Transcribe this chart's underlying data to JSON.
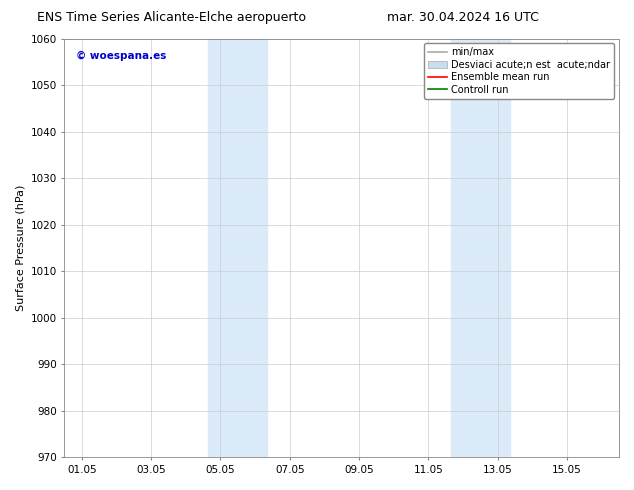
{
  "title_left": "ENS Time Series Alicante-Elche aeropuerto",
  "title_right": "mar. 30.04.2024 16 UTC",
  "ylabel": "Surface Pressure (hPa)",
  "ylim": [
    970,
    1060
  ],
  "yticks": [
    970,
    980,
    990,
    1000,
    1010,
    1020,
    1030,
    1040,
    1050,
    1060
  ],
  "xtick_labels": [
    "01.05",
    "03.05",
    "05.05",
    "07.05",
    "09.05",
    "11.05",
    "13.05",
    "15.05"
  ],
  "xtick_positions": [
    0,
    2,
    4,
    6,
    8,
    10,
    12,
    14
  ],
  "xlim": [
    -0.5,
    15.5
  ],
  "shade_regions": [
    {
      "start": 3.65,
      "end": 5.35
    },
    {
      "start": 10.65,
      "end": 12.35
    }
  ],
  "shade_color": "#daeaf8",
  "background_color": "#ffffff",
  "watermark_text": "© woespana.es",
  "watermark_color": "#0000cc",
  "legend_line1_label": "min/max",
  "legend_line1_color": "#aaaaaa",
  "legend_line2_label": "Desviaci acute;n est  acute;ndar",
  "legend_line2_color": "#c8ddf0",
  "legend_line3_label": "Ensemble mean run",
  "legend_line3_color": "#ff0000",
  "legend_line4_label": "Controll run",
  "legend_line4_color": "#008000",
  "grid_color": "#cccccc",
  "title_fontsize": 9,
  "axis_label_fontsize": 8,
  "tick_fontsize": 7.5,
  "legend_fontsize": 7
}
